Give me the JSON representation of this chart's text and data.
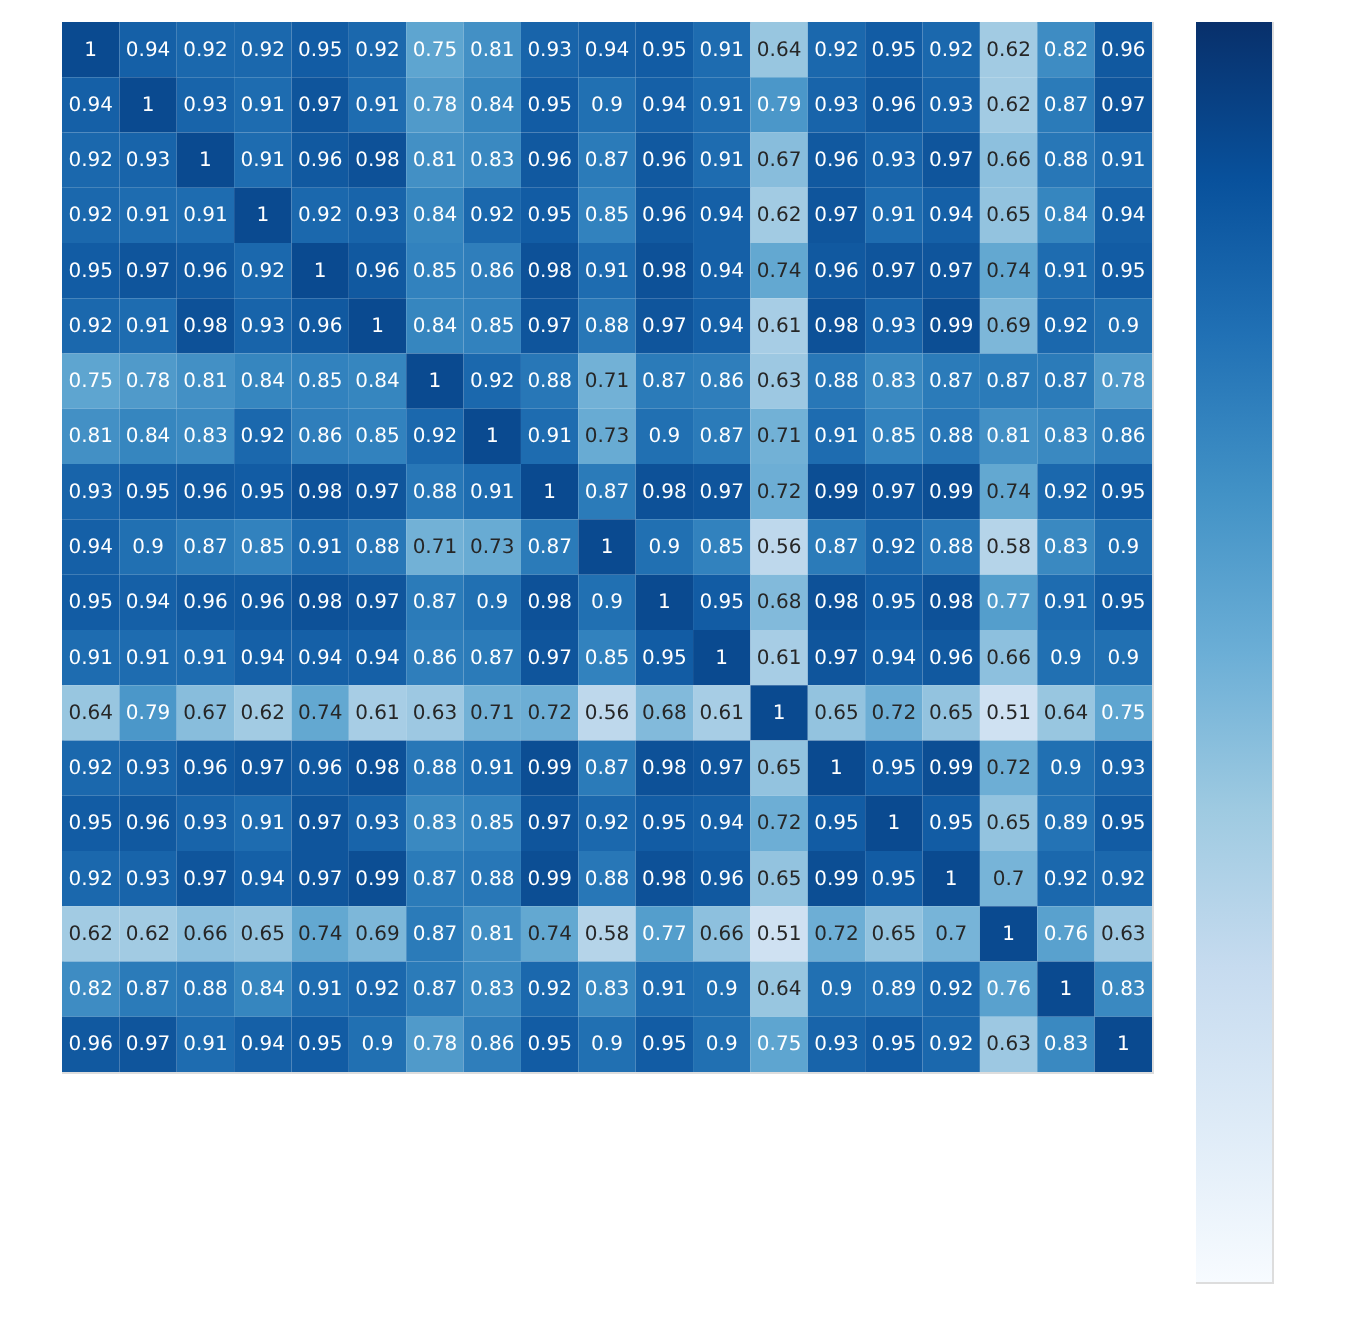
{
  "chart_data": {
    "type": "heatmap",
    "categories": [
      null,
      null,
      null,
      null,
      null,
      null,
      null,
      null,
      null,
      null,
      null,
      null,
      null,
      null,
      null,
      null,
      null,
      null,
      null
    ],
    "y_categories": [
      null,
      null,
      null,
      null,
      null,
      null,
      null,
      null,
      null,
      null,
      null,
      null,
      null,
      null,
      null,
      null,
      null,
      null,
      null
    ],
    "cells": [
      [
        1,
        0.94,
        0.92,
        0.92,
        0.95,
        0.92,
        0.75,
        0.81,
        0.93,
        0.94,
        0.95,
        0.91,
        0.64,
        0.92,
        0.95,
        0.92,
        0.62,
        0.82,
        0.96
      ],
      [
        0.94,
        1,
        0.93,
        0.91,
        0.97,
        0.91,
        0.78,
        0.84,
        0.95,
        0.9,
        0.94,
        0.91,
        0.79,
        0.93,
        0.96,
        0.93,
        0.62,
        0.87,
        0.97
      ],
      [
        0.92,
        0.93,
        1,
        0.91,
        0.96,
        0.98,
        0.81,
        0.83,
        0.96,
        0.87,
        0.96,
        0.91,
        0.67,
        0.96,
        0.93,
        0.97,
        0.66,
        0.88,
        0.91
      ],
      [
        0.92,
        0.91,
        0.91,
        1,
        0.92,
        0.93,
        0.84,
        0.92,
        0.95,
        0.85,
        0.96,
        0.94,
        0.62,
        0.97,
        0.91,
        0.94,
        0.65,
        0.84,
        0.94
      ],
      [
        0.95,
        0.97,
        0.96,
        0.92,
        1,
        0.96,
        0.85,
        0.86,
        0.98,
        0.91,
        0.98,
        0.94,
        0.74,
        0.96,
        0.97,
        0.97,
        0.74,
        0.91,
        0.95
      ],
      [
        0.92,
        0.91,
        0.98,
        0.93,
        0.96,
        1,
        0.84,
        0.85,
        0.97,
        0.88,
        0.97,
        0.94,
        0.61,
        0.98,
        0.93,
        0.99,
        0.69,
        0.92,
        0.9
      ],
      [
        0.75,
        0.78,
        0.81,
        0.84,
        0.85,
        0.84,
        1,
        0.92,
        0.88,
        0.71,
        0.87,
        0.86,
        0.63,
        0.88,
        0.83,
        0.87,
        0.87,
        0.87,
        0.78
      ],
      [
        0.81,
        0.84,
        0.83,
        0.92,
        0.86,
        0.85,
        0.92,
        1,
        0.91,
        0.73,
        0.9,
        0.87,
        0.71,
        0.91,
        0.85,
        0.88,
        0.81,
        0.83,
        0.86
      ],
      [
        0.93,
        0.95,
        0.96,
        0.95,
        0.98,
        0.97,
        0.88,
        0.91,
        1,
        0.87,
        0.98,
        0.97,
        0.72,
        0.99,
        0.97,
        0.99,
        0.74,
        0.92,
        0.95
      ],
      [
        0.94,
        0.9,
        0.87,
        0.85,
        0.91,
        0.88,
        0.71,
        0.73,
        0.87,
        1,
        0.9,
        0.85,
        0.56,
        0.87,
        0.92,
        0.88,
        0.58,
        0.83,
        0.9
      ],
      [
        0.95,
        0.94,
        0.96,
        0.96,
        0.98,
        0.97,
        0.87,
        0.9,
        0.98,
        0.9,
        1,
        0.95,
        0.68,
        0.98,
        0.95,
        0.98,
        0.77,
        0.91,
        0.95
      ],
      [
        0.91,
        0.91,
        0.91,
        0.94,
        0.94,
        0.94,
        0.86,
        0.87,
        0.97,
        0.85,
        0.95,
        1,
        0.61,
        0.97,
        0.94,
        0.96,
        0.66,
        0.9,
        0.9
      ],
      [
        0.64,
        0.79,
        0.67,
        0.62,
        0.74,
        0.61,
        0.63,
        0.71,
        0.72,
        0.56,
        0.68,
        0.61,
        1,
        0.65,
        0.72,
        0.65,
        0.51,
        0.64,
        0.75
      ],
      [
        0.92,
        0.93,
        0.96,
        0.97,
        0.96,
        0.98,
        0.88,
        0.91,
        0.99,
        0.87,
        0.98,
        0.97,
        0.65,
        1,
        0.95,
        0.99,
        0.72,
        0.9,
        0.93
      ],
      [
        0.95,
        0.96,
        0.93,
        0.91,
        0.97,
        0.93,
        0.83,
        0.85,
        0.97,
        0.92,
        0.95,
        0.94,
        0.72,
        0.95,
        1,
        0.95,
        0.65,
        0.89,
        0.95
      ],
      [
        0.92,
        0.93,
        0.97,
        0.94,
        0.97,
        0.99,
        0.87,
        0.88,
        0.99,
        0.88,
        0.98,
        0.96,
        0.65,
        0.99,
        0.95,
        1,
        0.7,
        0.92,
        0.92
      ],
      [
        0.62,
        0.62,
        0.66,
        0.65,
        0.74,
        0.69,
        0.87,
        0.81,
        0.74,
        0.58,
        0.77,
        0.66,
        0.51,
        0.72,
        0.65,
        0.7,
        1,
        0.76,
        0.63
      ],
      [
        0.82,
        0.87,
        0.88,
        0.84,
        0.91,
        0.92,
        0.87,
        0.83,
        0.92,
        0.83,
        0.91,
        0.9,
        0.64,
        0.9,
        0.89,
        0.92,
        0.76,
        1,
        0.83
      ],
      [
        0.96,
        0.97,
        0.91,
        0.94,
        0.95,
        0.9,
        0.78,
        0.86,
        0.95,
        0.9,
        0.95,
        0.9,
        0.75,
        0.93,
        0.95,
        0.92,
        0.63,
        0.83,
        1
      ]
    ],
    "data_labels": true,
    "tick_labels": false,
    "grid": false
  }
}
